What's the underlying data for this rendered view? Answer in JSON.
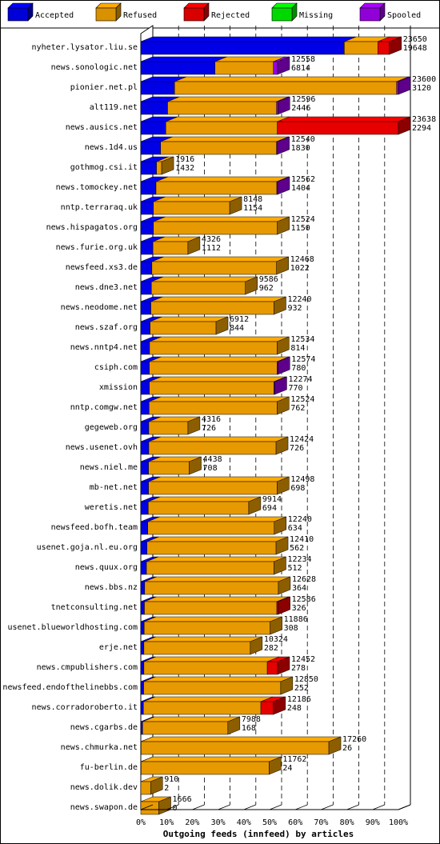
{
  "chart_data": {
    "type": "bar",
    "orientation": "horizontal",
    "stacked": true,
    "title": "Outgoing feeds (innfeed) by articles",
    "legend_position": "top",
    "grid": true,
    "xlim": [
      0,
      100
    ],
    "x_ticks": [
      "0%",
      "10%",
      "20%",
      "30%",
      "40%",
      "50%",
      "60%",
      "70%",
      "80%",
      "90%",
      "100%"
    ],
    "series": [
      {
        "name": "Accepted",
        "color": "#0000ff"
      },
      {
        "name": "Refused",
        "color": "#ffaa00"
      },
      {
        "name": "Rejected",
        "color": "#ff0000"
      },
      {
        "name": "Missing",
        "color": "#00ff00"
      },
      {
        "name": "Spooled",
        "color": "#aa00ff"
      }
    ],
    "rows": [
      {
        "name": "nyheter.lysator.liu.se",
        "total": "23650",
        "accepted": "19648",
        "pct": [
          79.0,
          13.0,
          4.5,
          0,
          0
        ]
      },
      {
        "name": "news.sonologic.net",
        "total": "12558",
        "accepted": "6814",
        "pct": [
          28.8,
          22.7,
          0,
          0,
          1.6
        ]
      },
      {
        "name": "pionier.net.pl",
        "total": "23600",
        "accepted": "3120",
        "pct": [
          13.1,
          86.2,
          0,
          0,
          0.7
        ]
      },
      {
        "name": "alt119.net",
        "total": "12596",
        "accepted": "2446",
        "pct": [
          10.4,
          42.3,
          0,
          0,
          0.5
        ]
      },
      {
        "name": "news.ausics.net",
        "total": "23638",
        "accepted": "2294",
        "pct": [
          9.7,
          43.3,
          47.0,
          0,
          0
        ]
      },
      {
        "name": "news.1d4.us",
        "total": "12540",
        "accepted": "1830",
        "pct": [
          7.7,
          45.0,
          0,
          0,
          0.3
        ]
      },
      {
        "name": "gothmog.csi.it",
        "total": "1916",
        "accepted": "1432",
        "pct": [
          6.1,
          2.0,
          0,
          0,
          0
        ]
      },
      {
        "name": "news.tomockey.net",
        "total": "12562",
        "accepted": "1404",
        "pct": [
          5.9,
          46.9,
          0,
          0,
          0.3
        ]
      },
      {
        "name": "nntp.terraraq.uk",
        "total": "8148",
        "accepted": "1154",
        "pct": [
          4.9,
          29.6,
          0,
          0,
          0
        ]
      },
      {
        "name": "news.hispagatos.org",
        "total": "12524",
        "accepted": "1150",
        "pct": [
          4.9,
          48.1,
          0,
          0,
          0
        ]
      },
      {
        "name": "news.furie.org.uk",
        "total": "4326",
        "accepted": "1112",
        "pct": [
          4.7,
          13.6,
          0,
          0,
          0
        ]
      },
      {
        "name": "newsfeed.xs3.de",
        "total": "12468",
        "accepted": "1022",
        "pct": [
          4.3,
          48.4,
          0,
          0,
          0
        ]
      },
      {
        "name": "news.dne3.net",
        "total": "9586",
        "accepted": "962",
        "pct": [
          4.1,
          36.5,
          0,
          0,
          0
        ]
      },
      {
        "name": "news.neodome.net",
        "total": "12240",
        "accepted": "932",
        "pct": [
          3.9,
          47.8,
          0,
          0,
          0
        ]
      },
      {
        "name": "news.szaf.org",
        "total": "6912",
        "accepted": "844",
        "pct": [
          3.6,
          25.6,
          0,
          0,
          0
        ]
      },
      {
        "name": "news.nntp4.net",
        "total": "12534",
        "accepted": "814",
        "pct": [
          3.4,
          49.5,
          0,
          0,
          0
        ]
      },
      {
        "name": "csiph.com",
        "total": "12574",
        "accepted": "780",
        "pct": [
          3.3,
          49.6,
          0,
          0,
          0.3
        ]
      },
      {
        "name": "xmission",
        "total": "12274",
        "accepted": "770",
        "pct": [
          3.3,
          48.4,
          0,
          0,
          0.3
        ]
      },
      {
        "name": "nntp.comgw.net",
        "total": "12524",
        "accepted": "762",
        "pct": [
          3.2,
          49.7,
          0,
          0,
          0
        ]
      },
      {
        "name": "gegeweb.org",
        "total": "4316",
        "accepted": "726",
        "pct": [
          3.1,
          15.2,
          0,
          0,
          0
        ]
      },
      {
        "name": "news.usenet.ovh",
        "total": "12424",
        "accepted": "726",
        "pct": [
          3.1,
          49.4,
          0,
          0,
          0
        ]
      },
      {
        "name": "news.niel.me",
        "total": "4438",
        "accepted": "708",
        "pct": [
          3.0,
          15.8,
          0,
          0,
          0
        ]
      },
      {
        "name": "mb-net.net",
        "total": "12498",
        "accepted": "698",
        "pct": [
          3.0,
          49.9,
          0,
          0,
          0
        ]
      },
      {
        "name": "weretis.net",
        "total": "9914",
        "accepted": "694",
        "pct": [
          2.9,
          39.0,
          0,
          0,
          0
        ]
      },
      {
        "name": "newsfeed.bofh.team",
        "total": "12240",
        "accepted": "634",
        "pct": [
          2.7,
          49.1,
          0,
          0,
          0
        ]
      },
      {
        "name": "usenet.goja.nl.eu.org",
        "total": "12410",
        "accepted": "562",
        "pct": [
          2.4,
          50.1,
          0,
          0,
          0
        ]
      },
      {
        "name": "news.quux.org",
        "total": "12234",
        "accepted": "512",
        "pct": [
          2.2,
          49.5,
          0,
          0,
          0
        ]
      },
      {
        "name": "news.bbs.nz",
        "total": "12628",
        "accepted": "364",
        "pct": [
          1.5,
          51.9,
          0,
          0,
          0
        ]
      },
      {
        "name": "tnetconsulting.net",
        "total": "12586",
        "accepted": "326",
        "pct": [
          1.4,
          51.4,
          0.5,
          0,
          0
        ]
      },
      {
        "name": "usenet.blueworldhosting.com",
        "total": "11886",
        "accepted": "308",
        "pct": [
          1.3,
          48.9,
          0,
          0,
          0
        ]
      },
      {
        "name": "erje.net",
        "total": "10324",
        "accepted": "282",
        "pct": [
          1.2,
          41.3,
          0,
          0,
          0
        ]
      },
      {
        "name": "news.cmpublishers.com",
        "total": "12452",
        "accepted": "278",
        "pct": [
          1.2,
          47.9,
          4.0,
          0,
          0
        ]
      },
      {
        "name": "newsfeed.endofthelinebbs.com",
        "total": "12850",
        "accepted": "252",
        "pct": [
          1.1,
          53.2,
          0,
          0,
          0
        ]
      },
      {
        "name": "news.corradoroberto.it",
        "total": "12186",
        "accepted": "248",
        "pct": [
          1.0,
          45.6,
          4.9,
          0,
          0
        ]
      },
      {
        "name": "news.cgarbs.de",
        "total": "7988",
        "accepted": "168",
        "pct": [
          0.7,
          33.1,
          0,
          0,
          0
        ]
      },
      {
        "name": "news.chmurka.net",
        "total": "17260",
        "accepted": "26",
        "pct": [
          0.1,
          72.9,
          0,
          0,
          0
        ]
      },
      {
        "name": "fu-berlin.de",
        "total": "11762",
        "accepted": "24",
        "pct": [
          0.1,
          49.7,
          0,
          0,
          0
        ]
      },
      {
        "name": "news.dolik.dev",
        "total": "910",
        "accepted": "2",
        "pct": [
          0,
          3.8,
          0,
          0,
          0
        ]
      },
      {
        "name": "news.swapon.de",
        "total": "1666",
        "accepted": "0",
        "pct": [
          0,
          7.0,
          0,
          0,
          0
        ]
      }
    ]
  }
}
